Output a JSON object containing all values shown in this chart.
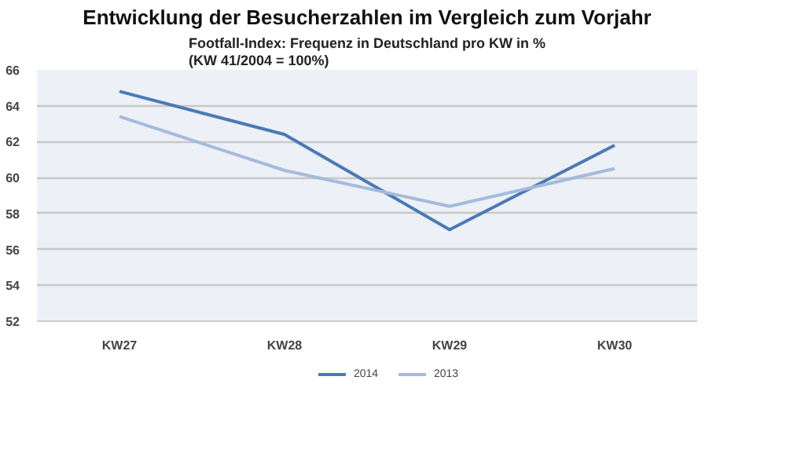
{
  "chart_data": {
    "type": "line",
    "title": "Entwicklung der Besucherzahlen im Vergleich zum Vorjahr",
    "subtitle": "Footfall-Index: Frequenz in Deutschland pro KW in %\n(KW 41/2004 = 100%)",
    "categories": [
      "KW27",
      "KW28",
      "KW29",
      "KW30"
    ],
    "series": [
      {
        "name": "2014",
        "color": "#4a7ab5",
        "values": [
          64.8,
          62.4,
          57.1,
          61.8
        ]
      },
      {
        "name": "2013",
        "color": "#a4bbdc",
        "values": [
          63.4,
          60.4,
          58.4,
          60.5
        ]
      }
    ],
    "ylim": [
      52,
      66
    ],
    "yticks": [
      52,
      54,
      56,
      58,
      60,
      62,
      64,
      66
    ],
    "grid": "y",
    "legend": "bottom",
    "marker": "none",
    "line_style": "solid"
  }
}
